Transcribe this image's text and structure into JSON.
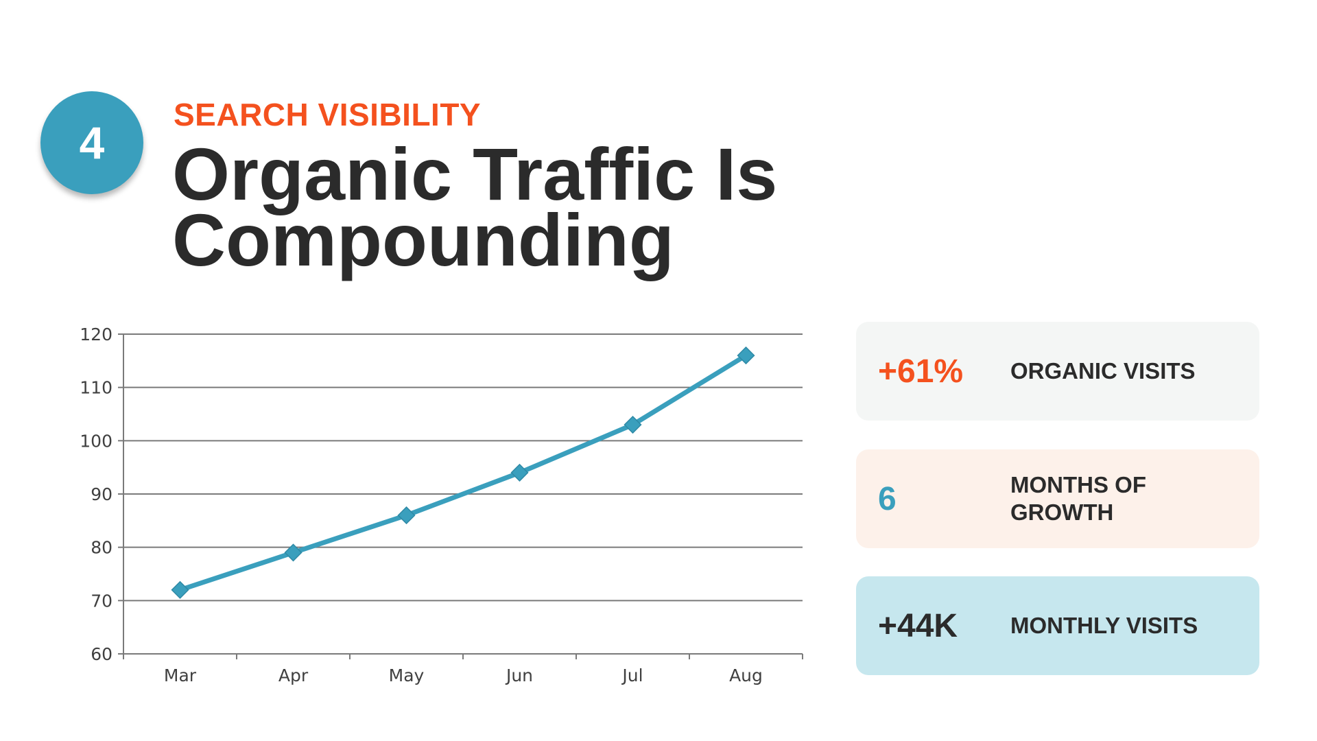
{
  "slide": {
    "number": "4",
    "eyebrow": "SEARCH VISIBILITY",
    "title": "Organic Traffic Is Compounding"
  },
  "colors": {
    "accent_orange": "#f4511e",
    "accent_teal": "#3a9fbd",
    "text_dark": "#2b2b2b",
    "card_gray": "#f4f6f5",
    "card_peach": "#fdf1ea",
    "card_blue": "#c6e7ee"
  },
  "stats": [
    {
      "value": "+61%",
      "label": "ORGANIC VISITS",
      "value_color": "#f4511e",
      "bg": "#f4f6f5"
    },
    {
      "value": "6",
      "label": "MONTHS OF GROWTH",
      "value_color": "#3a9fbd",
      "bg": "#fdf1ea"
    },
    {
      "value": "+44K",
      "label": "MONTHLY VISITS",
      "value_color": "#2b2b2b",
      "bg": "#c6e7ee"
    }
  ],
  "chart_data": {
    "type": "line",
    "title": "",
    "xlabel": "",
    "ylabel": "",
    "categories": [
      "Mar",
      "Apr",
      "May",
      "Jun",
      "Jul",
      "Aug"
    ],
    "series": [
      {
        "values": [
          72,
          79,
          86,
          94,
          103,
          116
        ],
        "color": "#3a9fbd"
      }
    ],
    "ylim": [
      60,
      120
    ],
    "yticks": [
      60,
      70,
      80,
      90,
      100,
      110,
      120
    ],
    "grid": true,
    "marker": "diamond"
  }
}
